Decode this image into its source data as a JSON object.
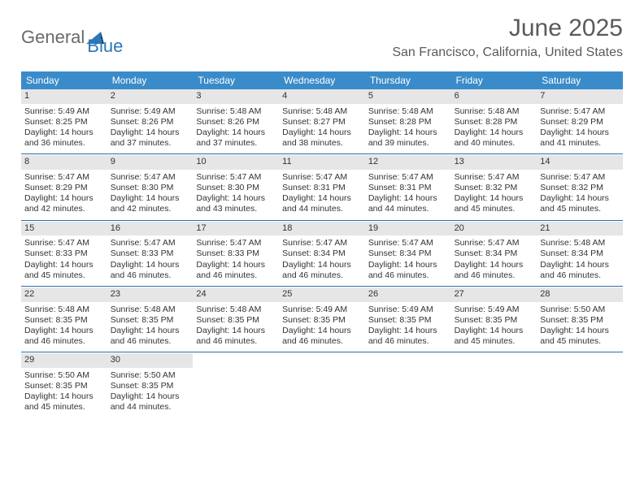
{
  "logo": {
    "general": "General",
    "blue": "Blue"
  },
  "title": "June 2025",
  "location": "San Francisco, California, United States",
  "colors": {
    "header_bg": "#3a8bc9",
    "rule": "#2c6ea8",
    "daynum_bg": "#e6e6e6",
    "text": "#333333"
  },
  "weekdays": [
    "Sunday",
    "Monday",
    "Tuesday",
    "Wednesday",
    "Thursday",
    "Friday",
    "Saturday"
  ],
  "weeks": [
    [
      {
        "n": "1",
        "sr": "5:49 AM",
        "ss": "8:25 PM",
        "dl1": "14 hours",
        "dl2": "36 minutes"
      },
      {
        "n": "2",
        "sr": "5:49 AM",
        "ss": "8:26 PM",
        "dl1": "14 hours",
        "dl2": "37 minutes"
      },
      {
        "n": "3",
        "sr": "5:48 AM",
        "ss": "8:26 PM",
        "dl1": "14 hours",
        "dl2": "37 minutes"
      },
      {
        "n": "4",
        "sr": "5:48 AM",
        "ss": "8:27 PM",
        "dl1": "14 hours",
        "dl2": "38 minutes"
      },
      {
        "n": "5",
        "sr": "5:48 AM",
        "ss": "8:28 PM",
        "dl1": "14 hours",
        "dl2": "39 minutes"
      },
      {
        "n": "6",
        "sr": "5:48 AM",
        "ss": "8:28 PM",
        "dl1": "14 hours",
        "dl2": "40 minutes"
      },
      {
        "n": "7",
        "sr": "5:47 AM",
        "ss": "8:29 PM",
        "dl1": "14 hours",
        "dl2": "41 minutes"
      }
    ],
    [
      {
        "n": "8",
        "sr": "5:47 AM",
        "ss": "8:29 PM",
        "dl1": "14 hours",
        "dl2": "42 minutes"
      },
      {
        "n": "9",
        "sr": "5:47 AM",
        "ss": "8:30 PM",
        "dl1": "14 hours",
        "dl2": "42 minutes"
      },
      {
        "n": "10",
        "sr": "5:47 AM",
        "ss": "8:30 PM",
        "dl1": "14 hours",
        "dl2": "43 minutes"
      },
      {
        "n": "11",
        "sr": "5:47 AM",
        "ss": "8:31 PM",
        "dl1": "14 hours",
        "dl2": "44 minutes"
      },
      {
        "n": "12",
        "sr": "5:47 AM",
        "ss": "8:31 PM",
        "dl1": "14 hours",
        "dl2": "44 minutes"
      },
      {
        "n": "13",
        "sr": "5:47 AM",
        "ss": "8:32 PM",
        "dl1": "14 hours",
        "dl2": "45 minutes"
      },
      {
        "n": "14",
        "sr": "5:47 AM",
        "ss": "8:32 PM",
        "dl1": "14 hours",
        "dl2": "45 minutes"
      }
    ],
    [
      {
        "n": "15",
        "sr": "5:47 AM",
        "ss": "8:33 PM",
        "dl1": "14 hours",
        "dl2": "45 minutes"
      },
      {
        "n": "16",
        "sr": "5:47 AM",
        "ss": "8:33 PM",
        "dl1": "14 hours",
        "dl2": "46 minutes"
      },
      {
        "n": "17",
        "sr": "5:47 AM",
        "ss": "8:33 PM",
        "dl1": "14 hours",
        "dl2": "46 minutes"
      },
      {
        "n": "18",
        "sr": "5:47 AM",
        "ss": "8:34 PM",
        "dl1": "14 hours",
        "dl2": "46 minutes"
      },
      {
        "n": "19",
        "sr": "5:47 AM",
        "ss": "8:34 PM",
        "dl1": "14 hours",
        "dl2": "46 minutes"
      },
      {
        "n": "20",
        "sr": "5:47 AM",
        "ss": "8:34 PM",
        "dl1": "14 hours",
        "dl2": "46 minutes"
      },
      {
        "n": "21",
        "sr": "5:48 AM",
        "ss": "8:34 PM",
        "dl1": "14 hours",
        "dl2": "46 minutes"
      }
    ],
    [
      {
        "n": "22",
        "sr": "5:48 AM",
        "ss": "8:35 PM",
        "dl1": "14 hours",
        "dl2": "46 minutes"
      },
      {
        "n": "23",
        "sr": "5:48 AM",
        "ss": "8:35 PM",
        "dl1": "14 hours",
        "dl2": "46 minutes"
      },
      {
        "n": "24",
        "sr": "5:48 AM",
        "ss": "8:35 PM",
        "dl1": "14 hours",
        "dl2": "46 minutes"
      },
      {
        "n": "25",
        "sr": "5:49 AM",
        "ss": "8:35 PM",
        "dl1": "14 hours",
        "dl2": "46 minutes"
      },
      {
        "n": "26",
        "sr": "5:49 AM",
        "ss": "8:35 PM",
        "dl1": "14 hours",
        "dl2": "46 minutes"
      },
      {
        "n": "27",
        "sr": "5:49 AM",
        "ss": "8:35 PM",
        "dl1": "14 hours",
        "dl2": "45 minutes"
      },
      {
        "n": "28",
        "sr": "5:50 AM",
        "ss": "8:35 PM",
        "dl1": "14 hours",
        "dl2": "45 minutes"
      }
    ],
    [
      {
        "n": "29",
        "sr": "5:50 AM",
        "ss": "8:35 PM",
        "dl1": "14 hours",
        "dl2": "45 minutes"
      },
      {
        "n": "30",
        "sr": "5:50 AM",
        "ss": "8:35 PM",
        "dl1": "14 hours",
        "dl2": "44 minutes"
      },
      null,
      null,
      null,
      null,
      null
    ]
  ],
  "labels": {
    "sunrise_prefix": "Sunrise: ",
    "sunset_prefix": "Sunset: ",
    "daylight_prefix": "Daylight: ",
    "and": "and ",
    "period": "."
  }
}
